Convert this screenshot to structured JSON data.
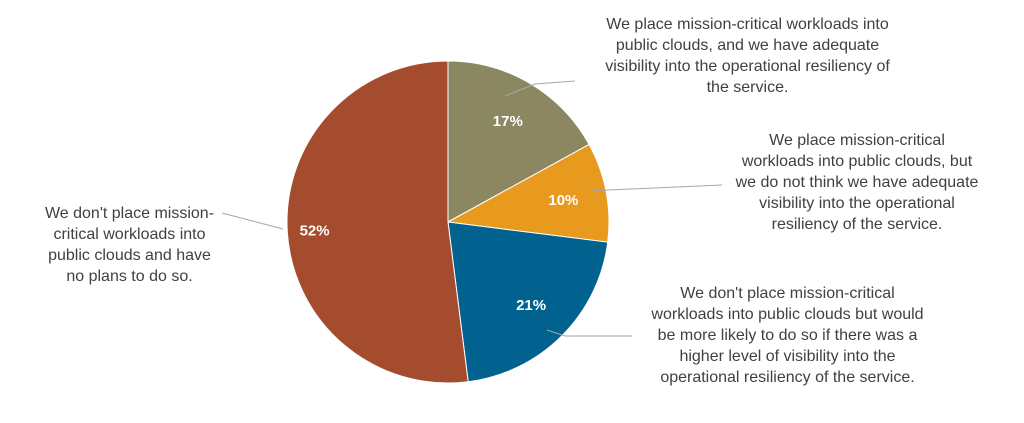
{
  "chart_data": {
    "type": "pie",
    "title": "",
    "categories": [
      "We place mission-critical workloads into public clouds, and we have adequate visibility into the operational resiliency of the service.",
      "We place mission-critical workloads into public clouds, but we do not think we have adequate visibility into the operational resiliency of the service.",
      "We don't place mission-critical workloads into public clouds but would be more likely to do so if there was a higher level of visibility into the operational resiliency of the service.",
      "We don't place mission-critical workloads into public clouds and have no plans to do so."
    ],
    "values": [
      17,
      10,
      21,
      52
    ],
    "labels": [
      "17%",
      "10%",
      "21%",
      "52%"
    ],
    "colors": [
      "#8b8760",
      "#e89a1f",
      "#02628f",
      "#a54b2e"
    ],
    "start_angle": "12 o'clock, clockwise",
    "legend": "none (callout labels)"
  },
  "callouts": {
    "slice17": [
      "We place mission-critical  workloads into",
      "public clouds, and we have adequate",
      "visibility into the operational resiliency of",
      "the service."
    ],
    "slice10": [
      "We place mission-critical",
      "workloads into public clouds, but",
      "we do not think we have adequate",
      "visibility into the operational",
      "resiliency of the service."
    ],
    "slice21": [
      "We don't place mission-critical",
      "workloads into public clouds but would",
      "be more likely to do so if there was a",
      "higher level of visibility into the",
      "operational resiliency of the service."
    ],
    "slice52": [
      "We don't place mission-",
      "critical workloads into",
      "public clouds and have",
      "no plans to do so."
    ]
  }
}
